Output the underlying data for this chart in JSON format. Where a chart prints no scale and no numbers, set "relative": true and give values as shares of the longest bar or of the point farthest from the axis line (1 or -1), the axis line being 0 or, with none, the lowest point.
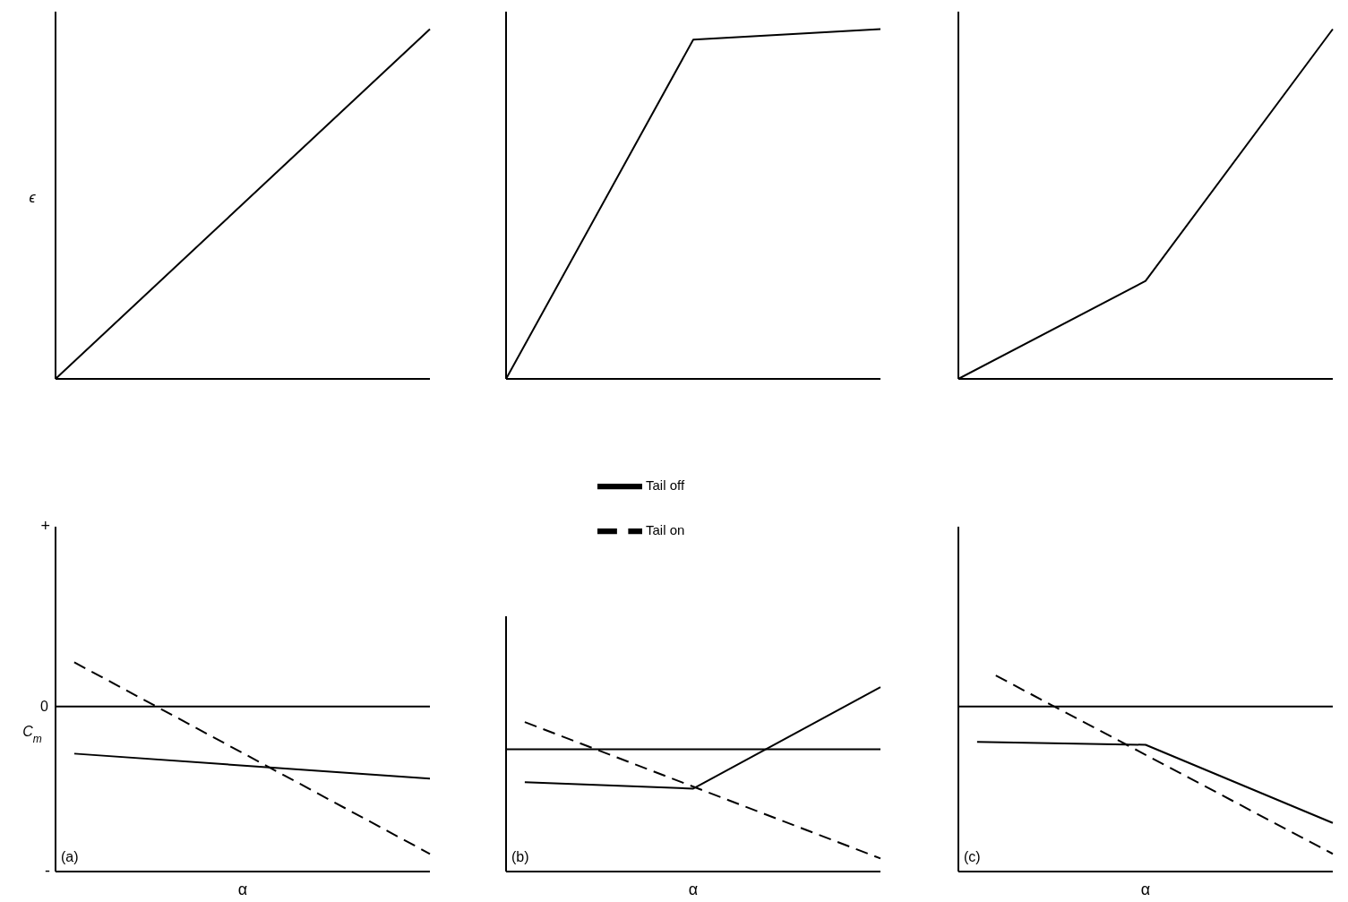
{
  "chart_data": [
    {
      "type": "line",
      "relative": true,
      "ylabel": "ϵ",
      "categories": [
        null,
        null,
        null,
        null,
        null,
        null,
        null,
        null,
        null,
        null,
        null,
        null,
        null,
        null,
        null,
        null,
        null,
        null,
        null,
        null,
        null
      ],
      "series": [
        {
          "color": "#000000",
          "line_style": "solid",
          "values": [
            0,
            null,
            null,
            null,
            null,
            null,
            null,
            null,
            null,
            null,
            null,
            null,
            null,
            null,
            null,
            null,
            null,
            null,
            null,
            null,
            1
          ]
        }
      ]
    },
    {
      "type": "line",
      "relative": true,
      "categories": [
        null,
        null,
        null,
        null,
        null,
        null,
        null,
        null,
        null,
        null,
        null,
        null,
        null,
        null,
        null,
        null,
        null,
        null,
        null,
        null,
        null
      ],
      "series": [
        {
          "color": "#000000",
          "line_style": "solid",
          "values": [
            0,
            null,
            null,
            null,
            null,
            null,
            null,
            null,
            null,
            null,
            0.97,
            null,
            null,
            null,
            null,
            null,
            null,
            null,
            null,
            null,
            1
          ]
        }
      ]
    },
    {
      "type": "line",
      "relative": true,
      "categories": [
        null,
        null,
        null,
        null,
        null,
        null,
        null,
        null,
        null,
        null,
        null,
        null,
        null,
        null,
        null,
        null,
        null,
        null,
        null,
        null,
        null
      ],
      "series": [
        {
          "color": "#000000",
          "line_style": "solid",
          "values": [
            0,
            null,
            null,
            null,
            null,
            null,
            null,
            null,
            null,
            null,
            0.28,
            null,
            null,
            null,
            null,
            null,
            null,
            null,
            null,
            null,
            1
          ]
        }
      ]
    },
    {
      "type": "line",
      "relative": true,
      "ylabel": "C$_{m}$",
      "xlabel": "α",
      "annotations": [
        "+",
        "-",
        "(a)"
      ],
      "ref_lines": [
        {
          "axis": "y",
          "value": 0,
          "label": "0"
        }
      ],
      "categories": [
        null,
        null,
        null,
        null,
        null,
        null,
        null,
        null,
        null,
        null,
        null,
        null,
        null,
        null,
        null,
        null,
        null,
        null,
        null,
        null,
        null
      ],
      "series": [
        {
          "color": "#000000",
          "line_style": "solid",
          "values": [
            null,
            -0.32,
            null,
            null,
            null,
            null,
            null,
            null,
            null,
            null,
            null,
            null,
            null,
            null,
            null,
            null,
            null,
            null,
            null,
            null,
            -0.49
          ]
        },
        {
          "color": "#000000",
          "line_style": "dashed",
          "values": [
            null,
            0.3,
            null,
            null,
            null,
            null,
            null,
            null,
            null,
            null,
            null,
            null,
            null,
            null,
            null,
            null,
            null,
            null,
            null,
            null,
            -1
          ]
        }
      ]
    },
    {
      "type": "line",
      "relative": true,
      "xlabel": "α",
      "annotations": [
        "(b)"
      ],
      "legend": "top",
      "ref_lines": [
        {
          "axis": "y",
          "value": 0
        }
      ],
      "categories": [
        null,
        null,
        null,
        null,
        null,
        null,
        null,
        null,
        null,
        null,
        null,
        null,
        null,
        null,
        null,
        null,
        null,
        null,
        null,
        null,
        null
      ],
      "series": [
        {
          "name": "Tail off",
          "color": "#000000",
          "line_style": "solid",
          "values": [
            null,
            -0.3,
            null,
            null,
            null,
            null,
            null,
            null,
            null,
            null,
            -0.36,
            null,
            null,
            null,
            null,
            null,
            null,
            null,
            null,
            null,
            0.57
          ]
        },
        {
          "name": "Tail on",
          "color": "#000000",
          "line_style": "dashed",
          "values": [
            null,
            0.25,
            null,
            null,
            null,
            null,
            null,
            null,
            null,
            null,
            null,
            null,
            null,
            null,
            null,
            null,
            null,
            null,
            null,
            null,
            -1
          ]
        }
      ]
    },
    {
      "type": "line",
      "relative": true,
      "xlabel": "α",
      "annotations": [
        "(c)"
      ],
      "ref_lines": [
        {
          "axis": "y",
          "value": 0
        }
      ],
      "categories": [
        null,
        null,
        null,
        null,
        null,
        null,
        null,
        null,
        null,
        null,
        null,
        null,
        null,
        null,
        null,
        null,
        null,
        null,
        null,
        null,
        null
      ],
      "series": [
        {
          "color": "#000000",
          "line_style": "solid",
          "values": [
            null,
            -0.24,
            null,
            null,
            null,
            null,
            null,
            null,
            null,
            null,
            -0.26,
            null,
            null,
            null,
            null,
            null,
            null,
            null,
            null,
            null,
            -0.79
          ]
        },
        {
          "color": "#000000",
          "line_style": "dashed",
          "values": [
            null,
            null,
            0.21,
            null,
            null,
            null,
            null,
            null,
            null,
            null,
            null,
            null,
            null,
            null,
            null,
            null,
            null,
            null,
            null,
            null,
            -1
          ]
        }
      ]
    }
  ]
}
